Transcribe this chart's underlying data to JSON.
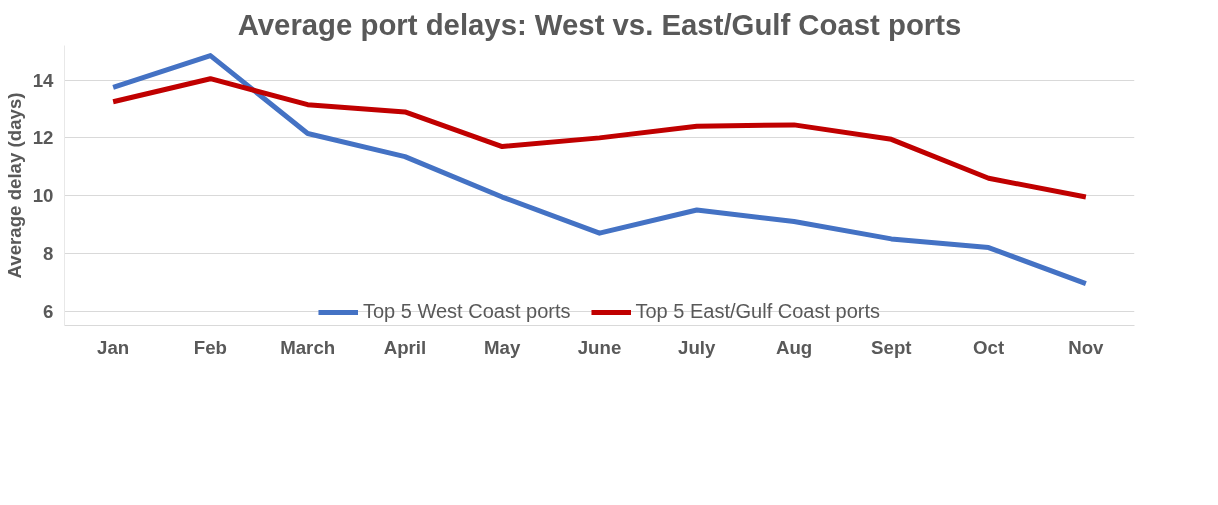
{
  "chart_data": {
    "type": "line",
    "title": "Average port delays: West vs. East/Gulf Coast ports",
    "ylabel": "Average delay (days)",
    "categories": [
      "Jan",
      "Feb",
      "March",
      "April",
      "May",
      "June",
      "July",
      "Aug",
      "Sept",
      "Oct",
      "Nov"
    ],
    "series": [
      {
        "name": "Top 5 West Coast ports",
        "color": "#4472c4",
        "values": [
          13.75,
          14.85,
          12.15,
          11.35,
          9.95,
          8.7,
          9.5,
          9.1,
          8.5,
          8.2,
          6.95
        ]
      },
      {
        "name": "Top 5 East/Gulf Coast ports",
        "color": "#c00000",
        "values": [
          13.25,
          14.05,
          13.15,
          12.9,
          11.7,
          12.0,
          12.4,
          12.45,
          11.95,
          10.6,
          9.95
        ]
      }
    ],
    "ylim": [
      5.5,
      15.2
    ],
    "yticks": [
      6,
      8,
      10,
      12,
      14
    ],
    "grid": "y",
    "legend": "bottom",
    "marker": "none",
    "line_style": "solid"
  }
}
